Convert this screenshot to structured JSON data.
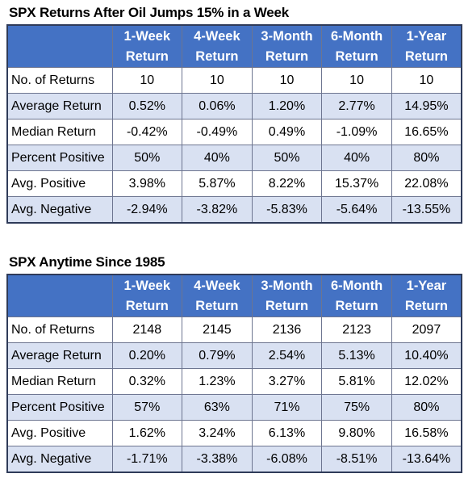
{
  "columns": [
    "1-Week Return",
    "4-Week Return",
    "3-Month Return",
    "6-Month Return",
    "1-Year Return"
  ],
  "columns_line1": [
    "1-Week",
    "4-Week",
    "3-Month",
    "6-Month",
    "1-Year"
  ],
  "columns_line2": [
    "Return",
    "Return",
    "Return",
    "Return",
    "Return"
  ],
  "tables": [
    {
      "title": "SPX Returns After Oil Jumps 15% in a Week",
      "rows": [
        {
          "label": "No. of Returns",
          "values": [
            "10",
            "10",
            "10",
            "10",
            "10"
          ]
        },
        {
          "label": "Average Return",
          "values": [
            "0.52%",
            "0.06%",
            "1.20%",
            "2.77%",
            "14.95%"
          ]
        },
        {
          "label": "Median Return",
          "values": [
            "-0.42%",
            "-0.49%",
            "0.49%",
            "-1.09%",
            "16.65%"
          ]
        },
        {
          "label": "Percent Positive",
          "values": [
            "50%",
            "40%",
            "50%",
            "40%",
            "80%"
          ]
        },
        {
          "label": "Avg. Positive",
          "values": [
            "3.98%",
            "5.87%",
            "8.22%",
            "15.37%",
            "22.08%"
          ]
        },
        {
          "label": "Avg. Negative",
          "values": [
            "-2.94%",
            "-3.82%",
            "-5.83%",
            "-5.64%",
            "-13.55%"
          ]
        }
      ]
    },
    {
      "title": "SPX Anytime Since 1985",
      "rows": [
        {
          "label": "No. of Returns",
          "values": [
            "2148",
            "2145",
            "2136",
            "2123",
            "2097"
          ]
        },
        {
          "label": "Average Return",
          "values": [
            "0.20%",
            "0.79%",
            "2.54%",
            "5.13%",
            "10.40%"
          ]
        },
        {
          "label": "Median Return",
          "values": [
            "0.32%",
            "1.23%",
            "3.27%",
            "5.81%",
            "12.02%"
          ]
        },
        {
          "label": "Percent Positive",
          "values": [
            "57%",
            "63%",
            "71%",
            "75%",
            "80%"
          ]
        },
        {
          "label": "Avg. Positive",
          "values": [
            "1.62%",
            "3.24%",
            "6.13%",
            "9.80%",
            "16.58%"
          ]
        },
        {
          "label": "Avg. Negative",
          "values": [
            "-1.71%",
            "-3.38%",
            "-6.08%",
            "-8.51%",
            "-13.64%"
          ]
        }
      ]
    }
  ],
  "colors": {
    "header_bg": "#4472c4",
    "header_text": "#ffffff",
    "band_row": "#d9e1f2",
    "plain_row": "#ffffff",
    "border": "#2f3b59"
  }
}
